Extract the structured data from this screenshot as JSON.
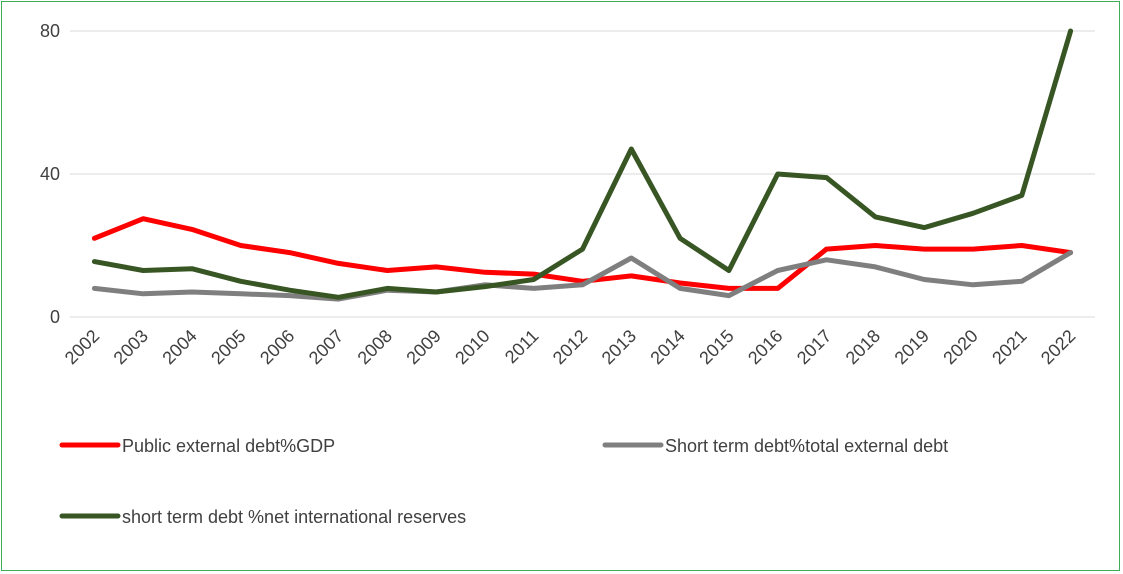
{
  "chart_data": {
    "type": "line",
    "title": "",
    "xlabel": "",
    "ylabel": "",
    "ylim": [
      0,
      80
    ],
    "yticks": [
      0,
      40,
      80
    ],
    "grid": true,
    "legend_position": "bottom",
    "categories": [
      "2002",
      "2003",
      "2004",
      "2005",
      "2006",
      "2007",
      "2008",
      "2009",
      "2010",
      "2011",
      "2012",
      "2013",
      "2014",
      "2015",
      "2016",
      "2017",
      "2018",
      "2019",
      "2020",
      "2021",
      "2022"
    ],
    "series": [
      {
        "name": "Public external debt%GDP",
        "color": "#ff0000",
        "values": [
          22,
          27.5,
          24.5,
          20,
          18,
          15,
          13,
          14,
          12.5,
          12,
          10,
          11.5,
          9.5,
          8,
          8,
          19,
          20,
          19,
          19,
          20,
          18
        ]
      },
      {
        "name": "Short term debt%total external debt",
        "color": "#7f7f7f",
        "values": [
          8,
          6.5,
          7,
          6.5,
          6,
          5,
          7.5,
          7,
          9,
          8,
          9,
          16.5,
          8,
          6,
          13,
          16,
          14,
          10.5,
          9,
          10,
          18
        ]
      },
      {
        "name": "short term debt %net international reserves",
        "color": "#375623",
        "values": [
          15.5,
          13,
          13.5,
          10,
          7.5,
          5.5,
          8,
          7,
          8.5,
          10.5,
          19,
          47,
          22,
          13,
          40,
          39,
          28,
          25,
          29,
          34,
          80
        ]
      }
    ]
  }
}
